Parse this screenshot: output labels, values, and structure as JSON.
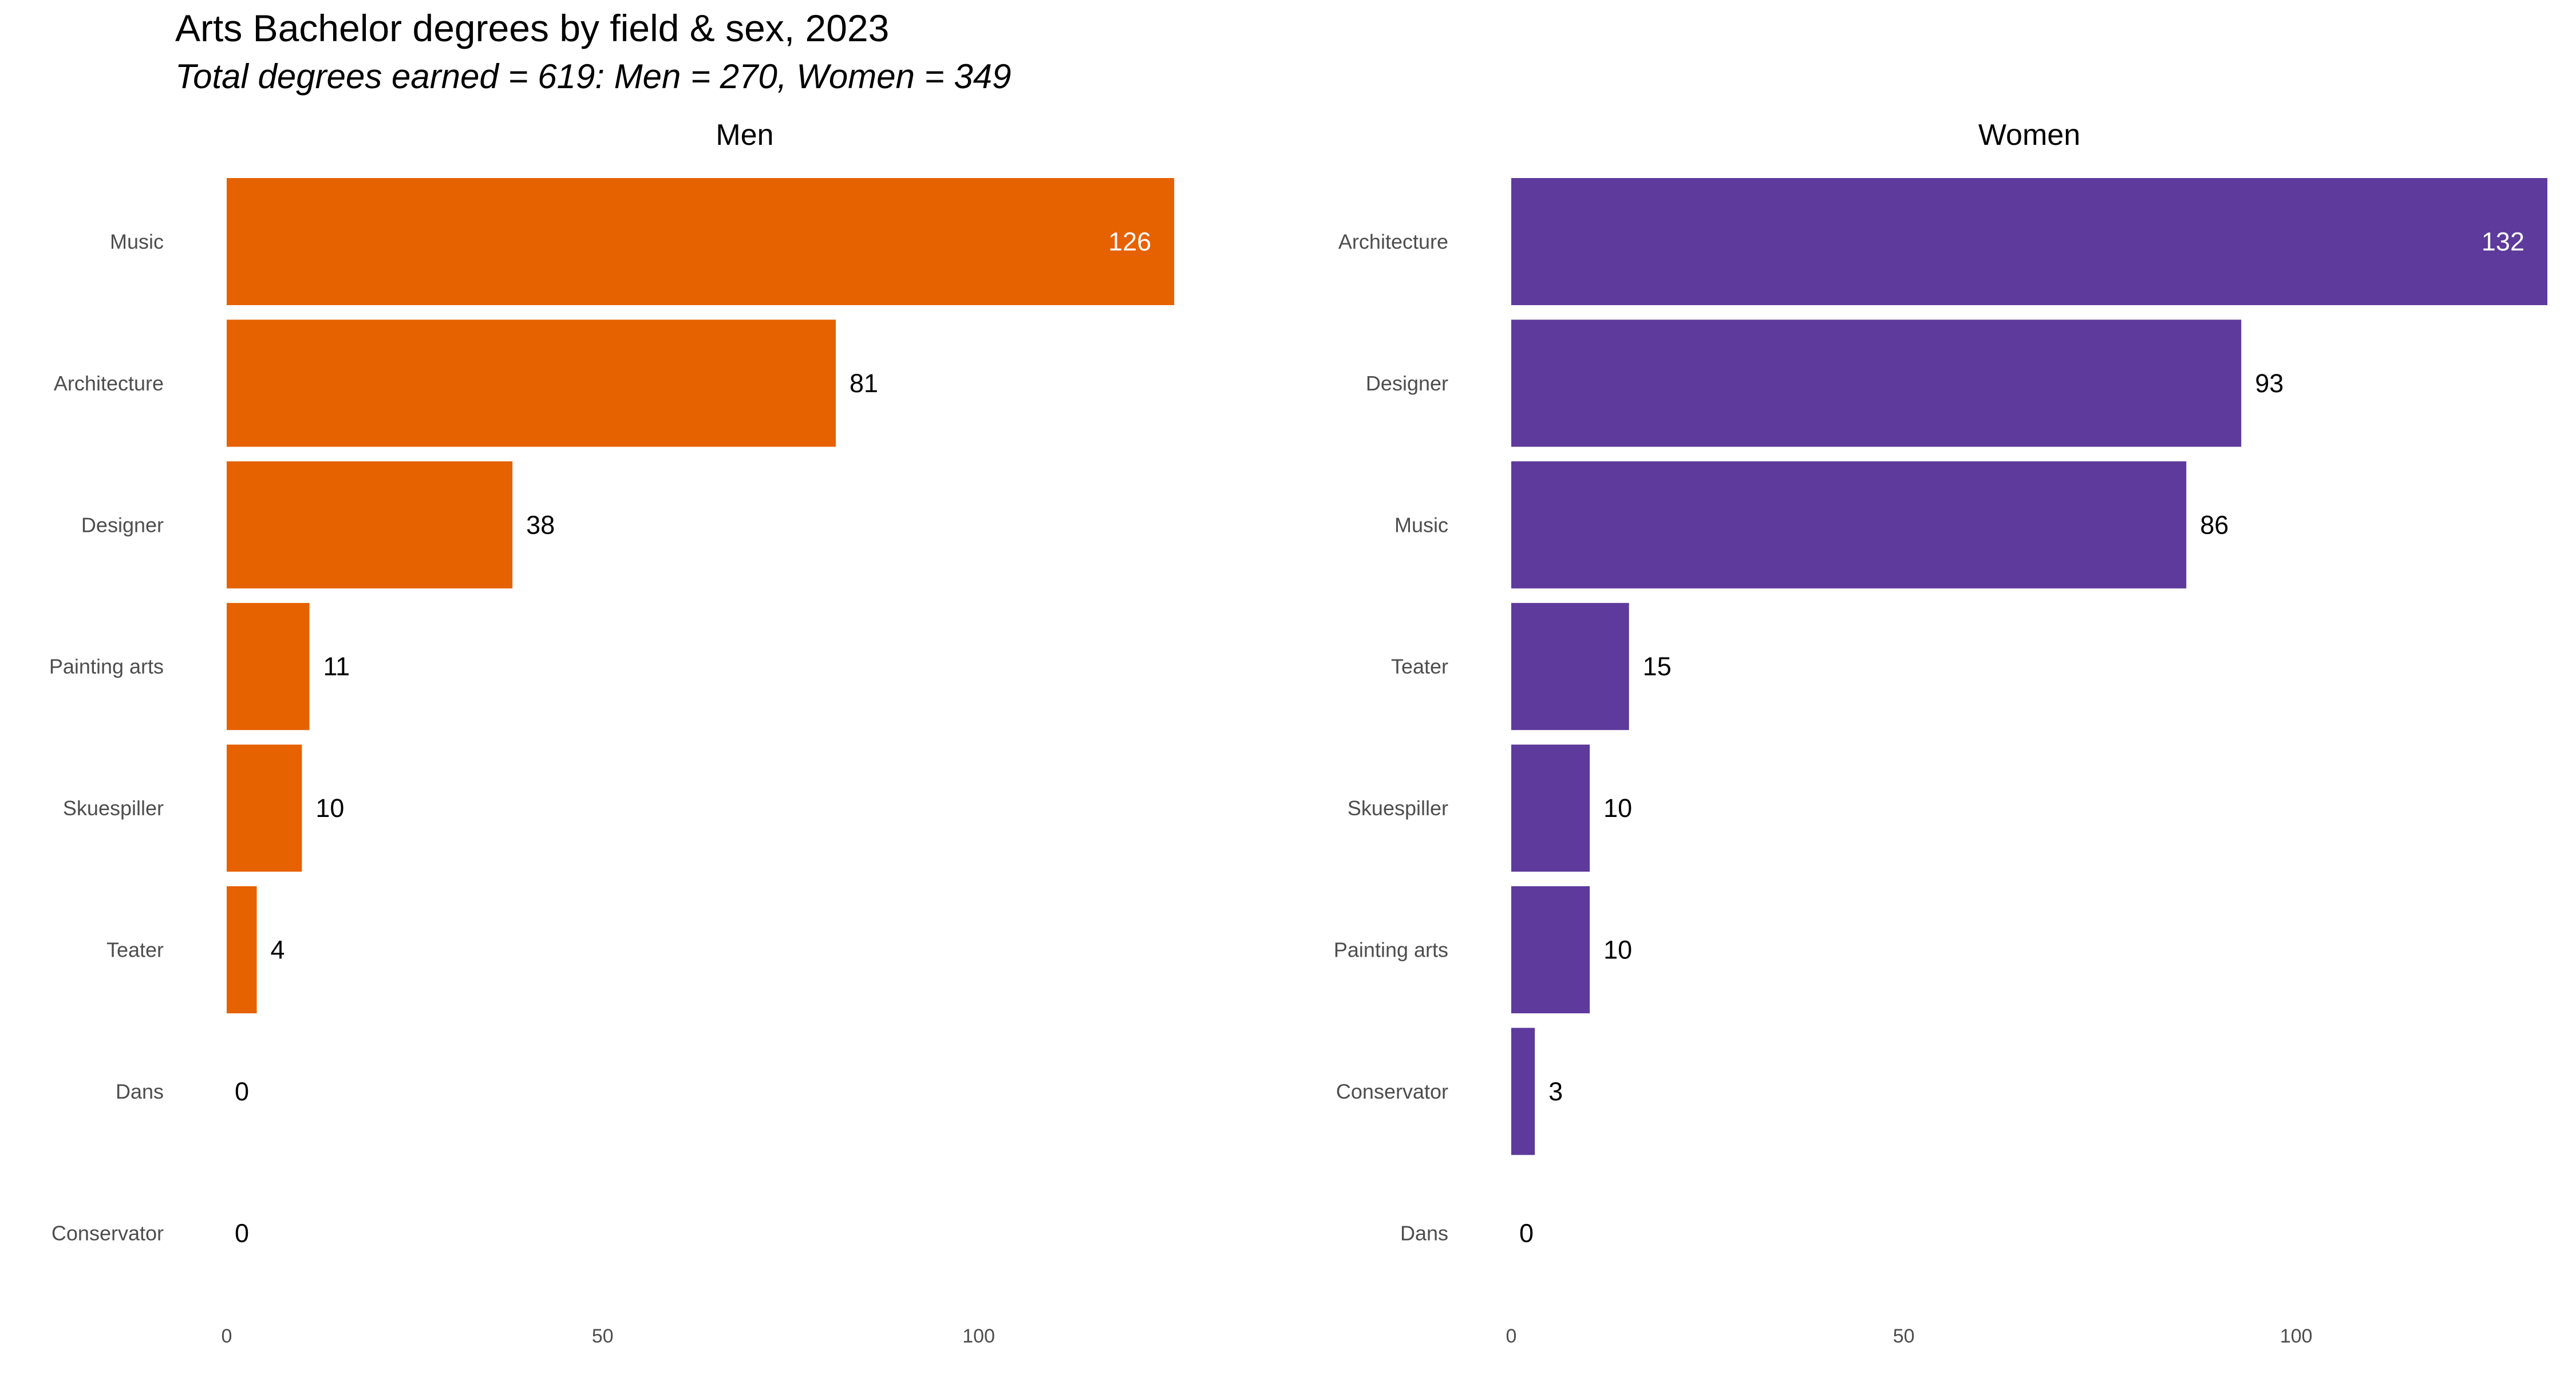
{
  "title": "Arts Bachelor degrees by field & sex, 2023",
  "subtitle": "Total degrees earned = 619: Men = 270, Women = 349",
  "colors": {
    "men": "#E66100",
    "women": "#5D3A9B"
  },
  "chart_data": [
    {
      "type": "bar",
      "orientation": "horizontal",
      "title": "Men",
      "categories": [
        "Music",
        "Architecture",
        "Designer",
        "Painting arts",
        "Skuespiller",
        "Teater",
        "Dans",
        "Conservator"
      ],
      "values": [
        126,
        81,
        38,
        11,
        10,
        4,
        0,
        0
      ],
      "xlim": [
        0,
        132
      ],
      "xticks": [
        0,
        50,
        100
      ],
      "xlabel": "",
      "ylabel": "",
      "color": "#E66100",
      "grid": false
    },
    {
      "type": "bar",
      "orientation": "horizontal",
      "title": "Women",
      "categories": [
        "Architecture",
        "Designer",
        "Music",
        "Teater",
        "Skuespiller",
        "Painting arts",
        "Conservator",
        "Dans"
      ],
      "values": [
        132,
        93,
        86,
        15,
        10,
        10,
        3,
        0
      ],
      "xlim": [
        0,
        132
      ],
      "xticks": [
        0,
        50,
        100
      ],
      "xlabel": "",
      "ylabel": "",
      "color": "#5D3A9B",
      "grid": false
    }
  ]
}
